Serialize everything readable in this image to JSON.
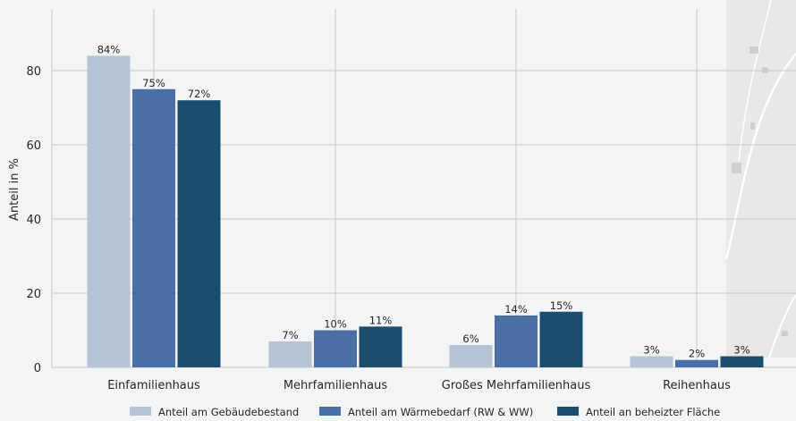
{
  "chart_data": {
    "type": "bar",
    "ylabel": "Anteil in %",
    "ylim": [
      0,
      95
    ],
    "yticks": [
      0,
      20,
      40,
      60,
      80
    ],
    "grid": true,
    "legend_position": "bottom",
    "categories": [
      "Einfamilienhaus",
      "Mehrfamilienhaus",
      "Großes Mehrfamilienhaus",
      "Reihenhaus"
    ],
    "series": [
      {
        "name": "Anteil am Gebäudebestand",
        "values": [
          84,
          7,
          6,
          3
        ],
        "labels": [
          "84%",
          "7%",
          "6%",
          "3%"
        ],
        "color": "#b7c4d6"
      },
      {
        "name": "Anteil am Wärmebedarf (RW & WW)",
        "values": [
          75,
          10,
          14,
          2
        ],
        "labels": [
          "75%",
          "10%",
          "14%",
          "2%"
        ],
        "color": "#4a6fa5"
      },
      {
        "name": "Anteil an beheizter Fläche",
        "values": [
          72,
          11,
          15,
          3
        ],
        "labels": [
          "72%",
          "11%",
          "15%",
          "3%"
        ],
        "color": "#1b4d6e"
      }
    ]
  },
  "colors": {
    "background": "#f3f4f6",
    "grid": "#c8c8cc",
    "map_background": "#e8e8e8",
    "map_road": "#ffffff"
  }
}
